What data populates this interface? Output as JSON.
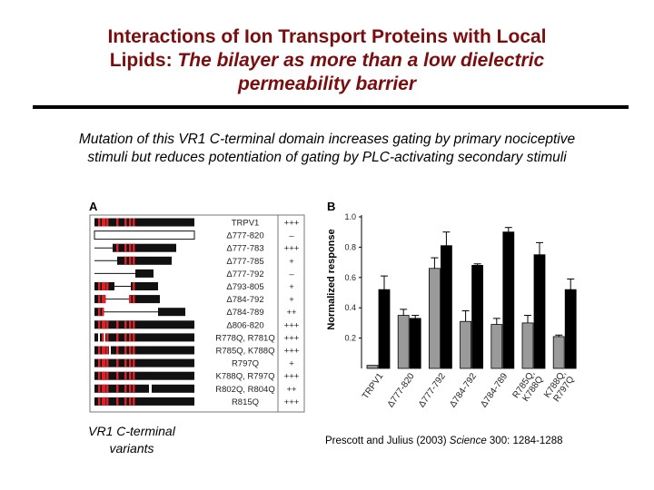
{
  "slide": {
    "title_line1": "Interactions of Ion Transport Proteins with Local",
    "title_line2a": "Lipids:  ",
    "title_line2b": "The bilayer as more than a low dielectric",
    "title_line3": "permeability barrier",
    "caption": "Mutation of this VR1 C-terminal domain increases gating by primary nociceptive stimuli but reduces potentiation of gating by PLC-activating secondary stimuli",
    "variants_caption": "VR1 C-terminal variants",
    "citation_authors": "Prescott and Julius (2003) ",
    "citation_journal": "Science",
    "citation_rest": " 300: 1284-1288"
  },
  "panel_a": {
    "label": "A",
    "rows": [
      {
        "name": "TRPV1",
        "score": "+++"
      },
      {
        "name": "Δ777-820",
        "score": "–"
      },
      {
        "name": "Δ777-783",
        "score": "+++"
      },
      {
        "name": "Δ777-785",
        "score": "+"
      },
      {
        "name": "Δ777-792",
        "score": "–"
      },
      {
        "name": "Δ793-805",
        "score": "+"
      },
      {
        "name": "Δ784-792",
        "score": "+"
      },
      {
        "name": "Δ784-789",
        "score": "++"
      },
      {
        "name": "Δ806-820",
        "score": "+++"
      },
      {
        "name": "R778Q, R781Q",
        "score": "+++"
      },
      {
        "name": "R785Q, K788Q",
        "score": "+++"
      },
      {
        "name": "R797Q",
        "score": "+"
      },
      {
        "name": "K788Q, R797Q",
        "score": "+++"
      },
      {
        "name": "R802Q, R804Q",
        "score": "++"
      },
      {
        "name": "R815Q",
        "score": "+++"
      }
    ]
  },
  "chart_data": {
    "type": "bar",
    "panel_label": "B",
    "ylabel": "Normalized response",
    "ylim": [
      0,
      1.0
    ],
    "yticks": [
      "1.0",
      "0.8",
      "0.6",
      "0.4",
      "0.2"
    ],
    "categories": [
      "TRPV1",
      "Δ777-820",
      "Δ777-792",
      "Δ784-792",
      "Δ784-789",
      "R785Q, K788Q",
      "K788Q, R797Q"
    ],
    "series": [
      {
        "color": "#9a9a9a",
        "values": [
          0.02,
          0.35,
          0.66,
          0.31,
          0.29,
          0.3,
          0.21
        ],
        "errors": [
          0.0,
          0.04,
          0.07,
          0.07,
          0.04,
          0.05,
          0.01
        ]
      },
      {
        "color": "#000000",
        "values": [
          0.52,
          0.33,
          0.81,
          0.68,
          0.9,
          0.75,
          0.52
        ],
        "errors": [
          0.09,
          0.02,
          0.09,
          0.01,
          0.03,
          0.08,
          0.07
        ]
      }
    ],
    "grid": false
  }
}
